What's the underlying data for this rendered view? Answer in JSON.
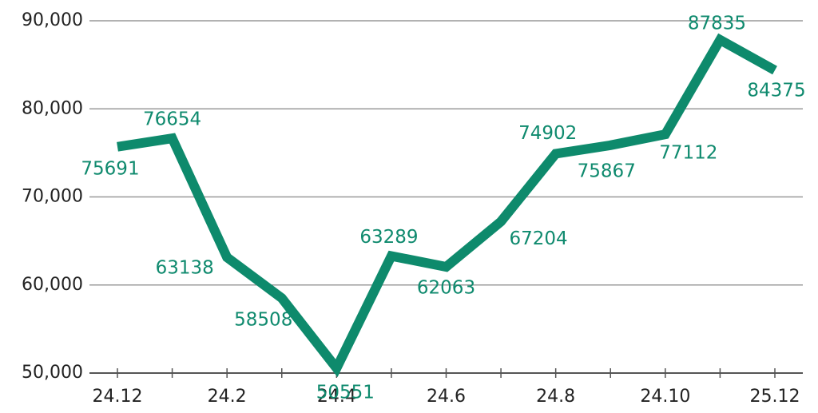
{
  "chart_data": {
    "type": "line",
    "categories": [
      "24.12",
      null,
      "24.2",
      null,
      "24.4",
      null,
      "24.6",
      null,
      "24.8",
      null,
      "24.10",
      null,
      "25.12"
    ],
    "series": [
      {
        "color": "#0e8a6c",
        "values": [
          75691,
          76654,
          63138,
          58508,
          50551,
          63289,
          62063,
          67204,
          74902,
          75867,
          77112,
          87835,
          84375
        ]
      }
    ],
    "ylim": [
      50000,
      90000
    ],
    "yticks": [
      {
        "value": 50000,
        "label": "50,000"
      },
      {
        "value": 60000,
        "label": "60,000"
      },
      {
        "value": 70000,
        "label": "70,000"
      },
      {
        "value": 80000,
        "label": "80,000"
      },
      {
        "value": 90000,
        "label": "90,000"
      }
    ],
    "grid": true
  }
}
